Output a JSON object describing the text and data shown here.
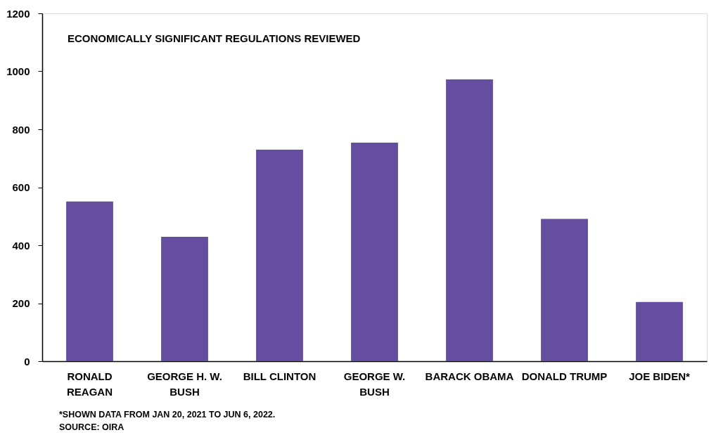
{
  "chart_data": {
    "type": "bar",
    "title": "ECONOMICALLY SIGNIFICANT REGULATIONS REVIEWED",
    "categories": [
      "RONALD REAGAN",
      "GEORGE H. W. BUSH",
      "BILL CLINTON",
      "GEORGE W. BUSH",
      "BARACK OBAMA",
      "DONALD TRUMP",
      "JOE BIDEN*"
    ],
    "values": [
      551,
      429,
      730,
      754,
      972,
      491,
      204
    ],
    "color": "#654ea0",
    "ylim": [
      0,
      1200
    ],
    "yticks": [
      0,
      200,
      400,
      600,
      800,
      1000,
      1200
    ],
    "grid": false,
    "annotations": [
      "*SHOWN DATA FROM JAN 20, 2021 TO JUN 6, 2022.",
      "SOURCE: OIRA"
    ]
  }
}
